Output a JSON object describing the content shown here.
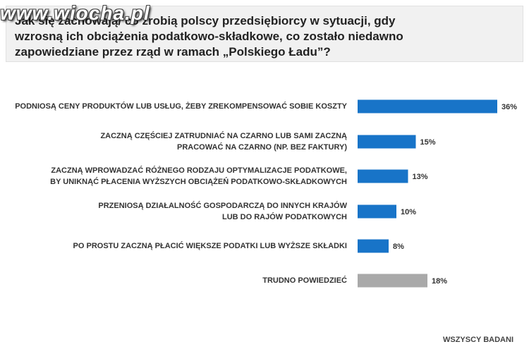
{
  "watermark": "www.wiocha.pl",
  "chart_data": {
    "type": "bar",
    "orientation": "horizontal",
    "title": "Jak się zachowają/ co zrobią polscy przedsiębiorcy w sytuacji, gdy wzrosną ich obciążenia podatkowo-składkowe, co zostało niedawno zapowiedziane przez rząd w ramach „Polskiego Ładu”?",
    "categories": [
      "PODNIOSĄ CENY PRODUKTÓW LUB USŁUG, ŻEBY ZREKOMPENSOWAĆ SOBIE KOSZTY",
      "ZACZNĄ CZĘŚCIEJ ZATRUDNIAĆ NA CZARNO LUB SAMI ZACZNĄ PRACOWAĆ NA CZARNO (NP. BEZ FAKTURY)",
      "ZACZNĄ WPROWADZAĆ RÓŻNEGO RODZAJU OPTYMALIZACJE PODATKOWE, BY UNIKNĄĆ PŁACENIA WYŻSZYCH OBCIĄŻEŃ PODATKOWO-SKŁADKOWYCH",
      "PRZENIOSĄ DZIAŁALNOŚĆ GOSPODARCZĄ DO INNYCH KRAJÓW LUB DO RAJÓW PODATKOWYCH",
      "PO PROSTU ZACZNĄ PŁACIĆ WIĘKSZE PODATKI LUB WYŻSZE SKŁADKI",
      "TRUDNO POWIEDZIEĆ"
    ],
    "category_lines": [
      [
        "PODNIOSĄ CENY PRODUKTÓW LUB USŁUG, ŻEBY ZREKOMPENSOWAĆ SOBIE KOSZTY"
      ],
      [
        "ZACZNĄ CZĘŚCIEJ ZATRUDNIAĆ NA CZARNO LUB SAMI ZACZNĄ",
        "PRACOWAĆ NA CZARNO (NP. BEZ FAKTURY)"
      ],
      [
        "ZACZNĄ WPROWADZAĆ RÓŻNEGO RODZAJU OPTYMALIZACJE PODATKOWE,",
        "BY UNIKNĄĆ PŁACENIA WYŻSZYCH OBCIĄŻEŃ PODATKOWO-SKŁADKOWYCH"
      ],
      [
        "PRZENIOSĄ DZIAŁALNOŚĆ GOSPODARCZĄ DO INNYCH KRAJÓW",
        "LUB DO RAJÓW PODATKOWYCH"
      ],
      [
        "PO PROSTU ZACZNĄ PŁACIĆ WIĘKSZE PODATKI LUB WYŻSZE SKŁADKI"
      ],
      [
        "TRUDNO POWIEDZIEĆ"
      ]
    ],
    "values": [
      36,
      15,
      13,
      10,
      8,
      18
    ],
    "value_labels": [
      "36%",
      "15%",
      "13%",
      "10%",
      "8%",
      "18%"
    ],
    "unit": "%",
    "xlim": [
      0,
      40
    ],
    "colors": [
      "#1874c8",
      "#1874c8",
      "#1874c8",
      "#1874c8",
      "#1874c8",
      "#a9a9a9"
    ],
    "grid": false,
    "footer": "WSZYSCY BADANI"
  }
}
